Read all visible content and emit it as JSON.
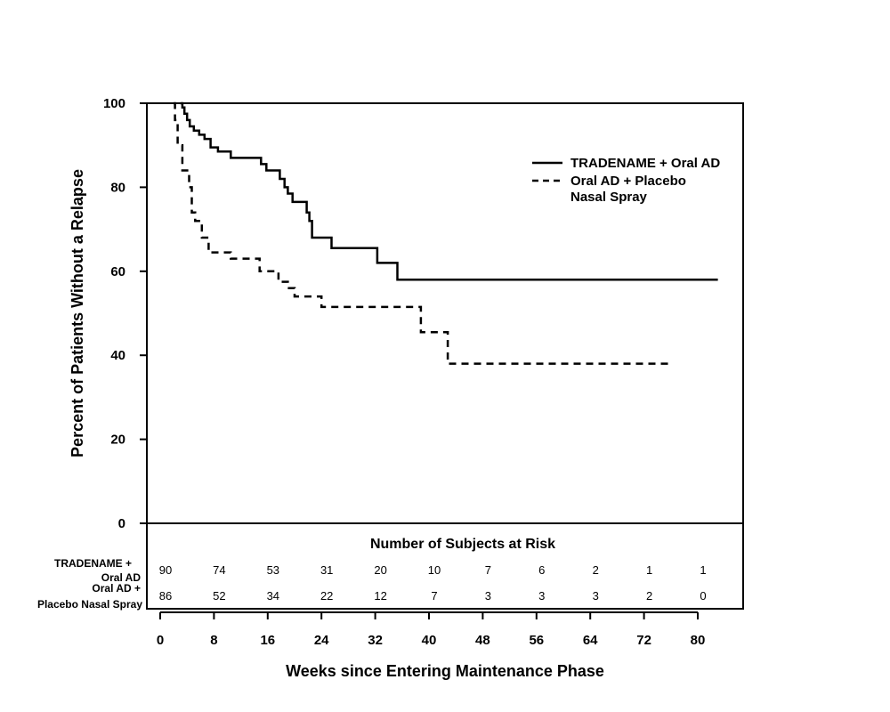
{
  "chart_data": {
    "type": "line",
    "xlabel": "Weeks since Entering Maintenance Phase",
    "ylabel": "Percent of Patients Without a Relapse",
    "xlim": [
      0,
      80
    ],
    "ylim": [
      0,
      100
    ],
    "x_ticks": [
      "0",
      "8",
      "16",
      "24",
      "32",
      "40",
      "48",
      "56",
      "64",
      "72",
      "80"
    ],
    "y_ticks": [
      "0",
      "20",
      "40",
      "60",
      "80",
      "100"
    ],
    "legend_position": "top-right",
    "series": [
      {
        "name": "TRADENAME + Oral AD",
        "style": "solid",
        "points": [
          [
            3.0,
            100
          ],
          [
            3.3,
            99
          ],
          [
            3.6,
            97.5
          ],
          [
            4.0,
            96
          ],
          [
            4.4,
            94.5
          ],
          [
            5.0,
            93.5
          ],
          [
            5.8,
            92.5
          ],
          [
            6.6,
            91.5
          ],
          [
            7.5,
            89.5
          ],
          [
            8.6,
            88.5
          ],
          [
            10.5,
            87
          ],
          [
            15.0,
            85.5
          ],
          [
            15.8,
            84
          ],
          [
            17.8,
            82
          ],
          [
            18.5,
            80
          ],
          [
            19.0,
            78.5
          ],
          [
            19.7,
            76.5
          ],
          [
            21.8,
            74
          ],
          [
            22.2,
            72
          ],
          [
            22.6,
            68
          ],
          [
            25.5,
            65.5
          ],
          [
            32.3,
            62
          ],
          [
            35.3,
            58
          ],
          [
            83.0,
            58
          ]
        ]
      },
      {
        "name": "Oral AD + Placebo Nasal Spray",
        "style": "dashed",
        "points": [
          [
            2.0,
            100
          ],
          [
            2.2,
            96
          ],
          [
            2.6,
            90
          ],
          [
            3.3,
            84
          ],
          [
            4.3,
            80
          ],
          [
            4.7,
            74
          ],
          [
            5.2,
            72
          ],
          [
            6.2,
            68
          ],
          [
            7.2,
            64.5
          ],
          [
            10.5,
            63
          ],
          [
            14.8,
            60
          ],
          [
            17.6,
            57.5
          ],
          [
            19.0,
            56
          ],
          [
            20.0,
            54
          ],
          [
            24.0,
            51.5
          ],
          [
            38.8,
            45.5
          ],
          [
            42.8,
            38
          ],
          [
            76.0,
            38
          ]
        ]
      }
    ]
  },
  "risk_table": {
    "title": "Number of Subjects at Risk",
    "rows": [
      {
        "label_line1": "TRADENAME +",
        "label_line2": "Oral AD",
        "values": [
          "90",
          "74",
          "53",
          "31",
          "20",
          "10",
          "7",
          "6",
          "2",
          "1",
          "1"
        ]
      },
      {
        "label_line1": "Oral AD +",
        "label_line2": "Placebo Nasal Spray",
        "values": [
          "86",
          "52",
          "34",
          "22",
          "12",
          "7",
          "3",
          "3",
          "3",
          "2",
          "0"
        ]
      }
    ]
  },
  "legend": {
    "solid_line1": "TRADENAME + Oral AD",
    "dashed_line1": "Oral AD + Placebo",
    "dashed_line2": "Nasal Spray"
  }
}
